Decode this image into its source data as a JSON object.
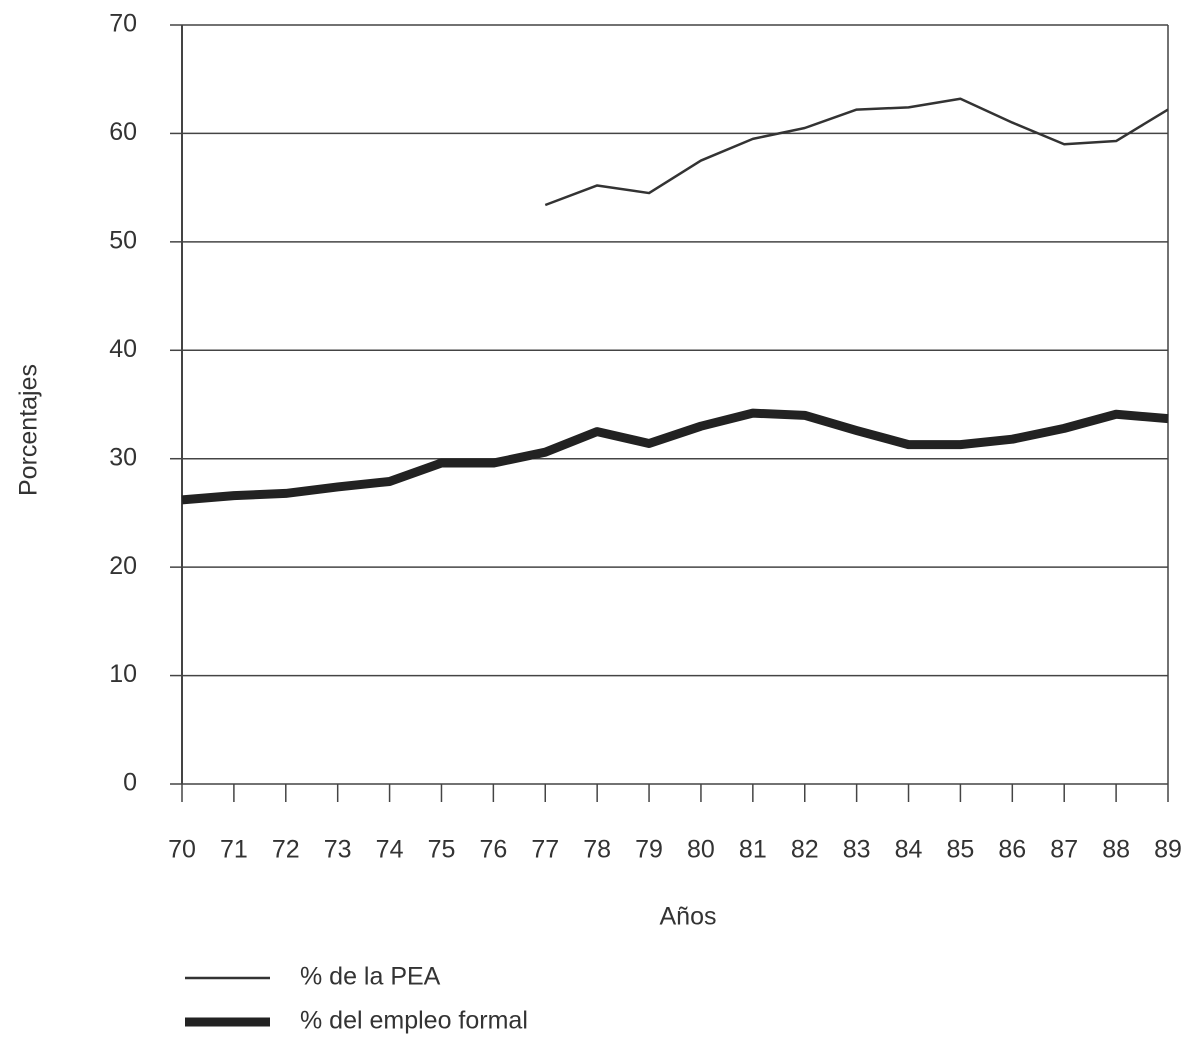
{
  "chart_data": {
    "type": "line",
    "y_label": "Porcentajes",
    "x_label": "Años",
    "categories": [
      "70",
      "71",
      "72",
      "73",
      "74",
      "75",
      "76",
      "77",
      "78",
      "79",
      "80",
      "81",
      "82",
      "83",
      "84",
      "85",
      "86",
      "87",
      "88",
      "89"
    ],
    "series": [
      {
        "name": "% de la PEA",
        "color": "#333333",
        "width": 2.5,
        "values": [
          null,
          null,
          null,
          null,
          null,
          null,
          null,
          53.4,
          55.2,
          54.5,
          57.5,
          59.5,
          60.5,
          62.2,
          62.4,
          63.2,
          61.0,
          59.0,
          59.3,
          62.2
        ]
      },
      {
        "name": "% del empleo formal",
        "color": "#222222",
        "width": 9,
        "values": [
          26.2,
          26.6,
          26.8,
          27.4,
          27.9,
          29.6,
          29.6,
          30.6,
          32.5,
          31.4,
          33.0,
          34.2,
          34.0,
          32.6,
          31.3,
          31.3,
          31.8,
          32.8,
          34.1,
          33.7
        ]
      }
    ],
    "ylim": [
      0,
      70
    ],
    "yticks": [
      0,
      10,
      20,
      30,
      40,
      50,
      60,
      70
    ],
    "grid": true
  }
}
